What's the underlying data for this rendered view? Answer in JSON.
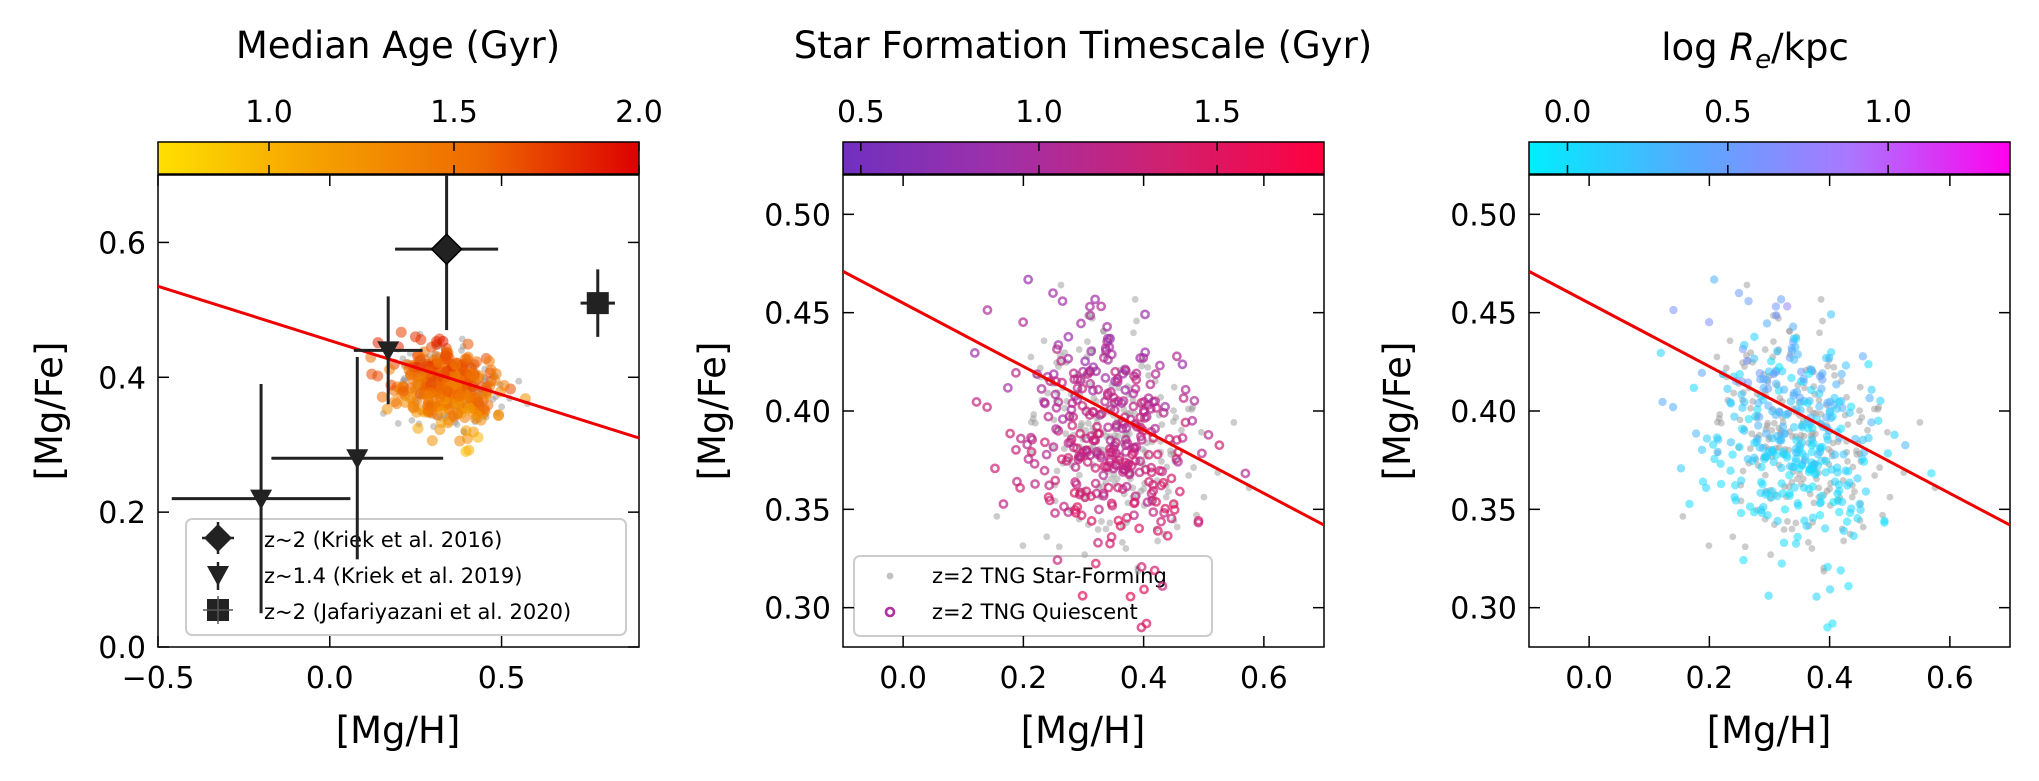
{
  "chart_data": [
    {
      "type": "scatter",
      "colorbar": {
        "label": "Median Age (Gyr)",
        "ticks": [
          "1.0",
          "1.5",
          "2.0"
        ],
        "range": [
          0.7,
          2.0
        ],
        "cmap": [
          "#FFE000",
          "#F5A000",
          "#EE6A00",
          "#DD0000"
        ]
      },
      "xlabel": "[Mg/H]",
      "ylabel": "[Mg/Fe]",
      "xlim": [
        -0.5,
        0.9
      ],
      "ylim": [
        0.0,
        0.7
      ],
      "xticks": [
        "−0.5",
        "0.0",
        "0.5"
      ],
      "yticks": [
        "0.0",
        "0.2",
        "0.4",
        "0.6"
      ],
      "fit_line": {
        "x": [
          -0.5,
          0.9
        ],
        "y": [
          0.535,
          0.31
        ],
        "color": "#EE0000"
      },
      "legend_position": "lower-right",
      "series": [
        {
          "name": "z~2 (Kriek et al. 2016)",
          "marker": "diamond",
          "points": [
            {
              "x": 0.34,
              "y": 0.59,
              "xerr": 0.15,
              "yerr": 0.12
            }
          ]
        },
        {
          "name": "z~1.4 (Kriek et al. 2019)",
          "marker": "triangle-down",
          "points": [
            {
              "x": -0.2,
              "y": 0.22,
              "xerr": 0.26,
              "yerr": 0.17
            },
            {
              "x": 0.08,
              "y": 0.28,
              "xerr": 0.25,
              "yerr": 0.15
            },
            {
              "x": 0.17,
              "y": 0.44,
              "xerr": 0.1,
              "yerr": 0.08
            }
          ]
        },
        {
          "name": "z~2 (Jafariyazani et al. 2020)",
          "marker": "square",
          "points": [
            {
              "x": 0.78,
              "y": 0.51,
              "xerr": 0.05,
              "yerr": 0.05
            }
          ]
        }
      ]
    },
    {
      "type": "scatter",
      "colorbar": {
        "label": "Star Formation Timescale (Gyr)",
        "ticks": [
          "0.5",
          "1.0",
          "1.5"
        ],
        "range": [
          0.45,
          1.8
        ],
        "cmap": [
          "#7030C0",
          "#A030A8",
          "#D02070",
          "#FF0040"
        ]
      },
      "xlabel": "[Mg/H]",
      "ylabel": "[Mg/Fe]",
      "xlim": [
        -0.1,
        0.7
      ],
      "ylim": [
        0.28,
        0.52
      ],
      "xticks": [
        "0.0",
        "0.2",
        "0.4",
        "0.6"
      ],
      "yticks": [
        "0.30",
        "0.35",
        "0.40",
        "0.45",
        "0.50"
      ],
      "fit_line": {
        "x": [
          -0.1,
          0.7
        ],
        "y": [
          0.471,
          0.342
        ],
        "color": "#EE0000"
      },
      "legend_position": "lower-left",
      "legend": [
        "z=2 TNG Star-Forming",
        "z=2 TNG Quiescent"
      ]
    },
    {
      "type": "scatter",
      "colorbar": {
        "label": "log R_e/kpc",
        "ticks": [
          "0.0",
          "0.5",
          "1.0"
        ],
        "range": [
          -0.12,
          1.38
        ],
        "cmap": [
          "#00EEFF",
          "#55AAFF",
          "#AA77FF",
          "#FF00EE"
        ]
      },
      "xlabel": "[Mg/H]",
      "ylabel": "[Mg/Fe]",
      "xlim": [
        -0.1,
        0.7
      ],
      "ylim": [
        0.28,
        0.52
      ],
      "xticks": [
        "0.0",
        "0.2",
        "0.4",
        "0.6"
      ],
      "yticks": [
        "0.30",
        "0.35",
        "0.40",
        "0.45",
        "0.50"
      ],
      "fit_line": {
        "x": [
          -0.1,
          0.7
        ],
        "y": [
          0.471,
          0.342
        ],
        "color": "#EE0000"
      }
    }
  ]
}
